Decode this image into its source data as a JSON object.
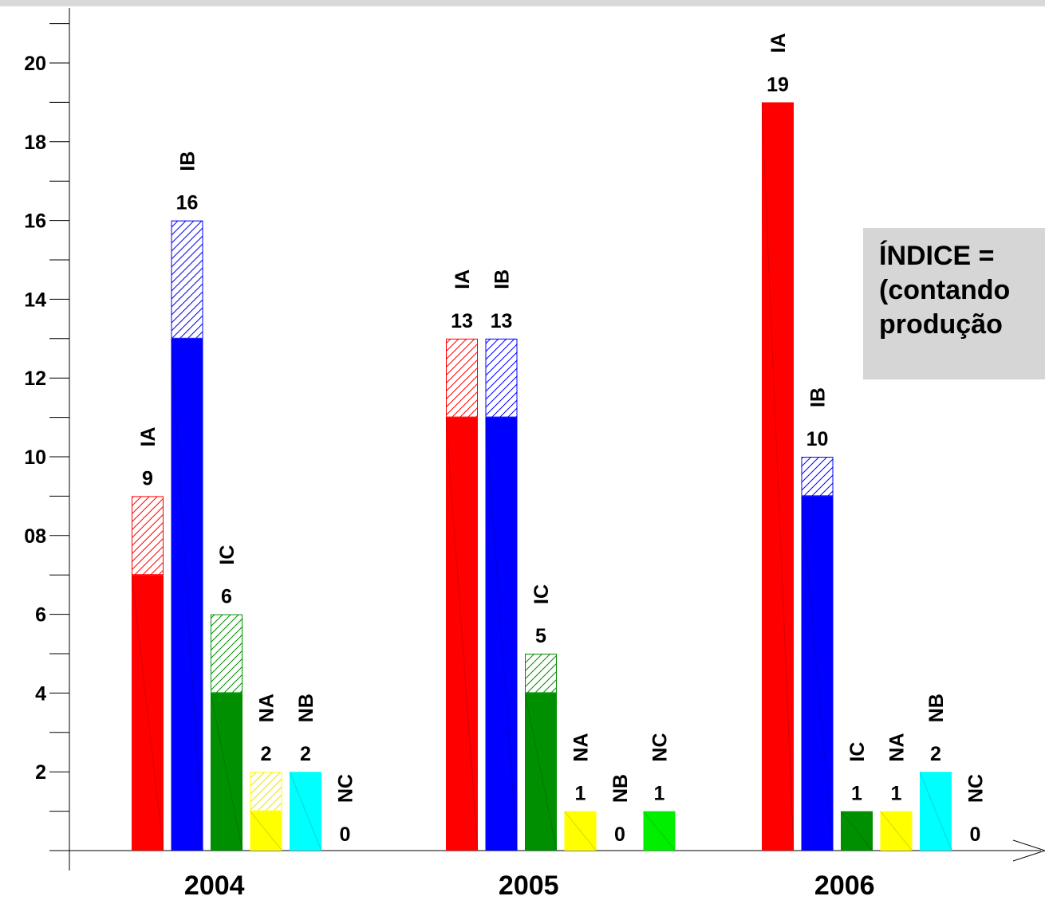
{
  "chart_data": {
    "type": "bar",
    "categories": [
      "2004",
      "2005",
      "2006"
    ],
    "stacked_segments": [
      "solid",
      "hatched"
    ],
    "ylim": [
      0,
      21
    ],
    "yticks": [
      2,
      4,
      6,
      8,
      10,
      12,
      14,
      16,
      18,
      20
    ],
    "ytick_labels": [
      "2",
      "4",
      "6",
      "08",
      "10",
      "12",
      "14",
      "16",
      "18",
      "20"
    ],
    "grid": false,
    "series": [
      {
        "name": "IA",
        "color": "#ff0000",
        "solid": [
          7,
          11,
          19
        ],
        "total": [
          9,
          13,
          19
        ]
      },
      {
        "name": "IB",
        "color": "#0000ff",
        "solid": [
          13,
          11,
          9
        ],
        "total": [
          16,
          13,
          10
        ]
      },
      {
        "name": "IC",
        "color": "#008f00",
        "solid": [
          4,
          4,
          1
        ],
        "total": [
          6,
          5,
          1
        ]
      },
      {
        "name": "NA",
        "color": "#ffff00",
        "solid": [
          1,
          1,
          1
        ],
        "total": [
          2,
          1,
          1
        ]
      },
      {
        "name": "NB",
        "color": "#00ffff",
        "solid": [
          2,
          0,
          2
        ],
        "total": [
          2,
          0,
          2
        ]
      },
      {
        "name": "NC",
        "color": "#00ee00",
        "solid": [
          0,
          1,
          0
        ],
        "total": [
          0,
          1,
          0
        ]
      }
    ],
    "value_labels": [
      [
        "9",
        "16",
        "6",
        "2",
        "2",
        "0"
      ],
      [
        "13",
        "13",
        "5",
        "1",
        "0",
        "1"
      ],
      [
        "19",
        "10",
        "1",
        "1",
        "2",
        "0"
      ]
    ]
  },
  "note": {
    "line1": "ÍNDICE = ",
    "line2": "(contando",
    "line3": "produção"
  }
}
